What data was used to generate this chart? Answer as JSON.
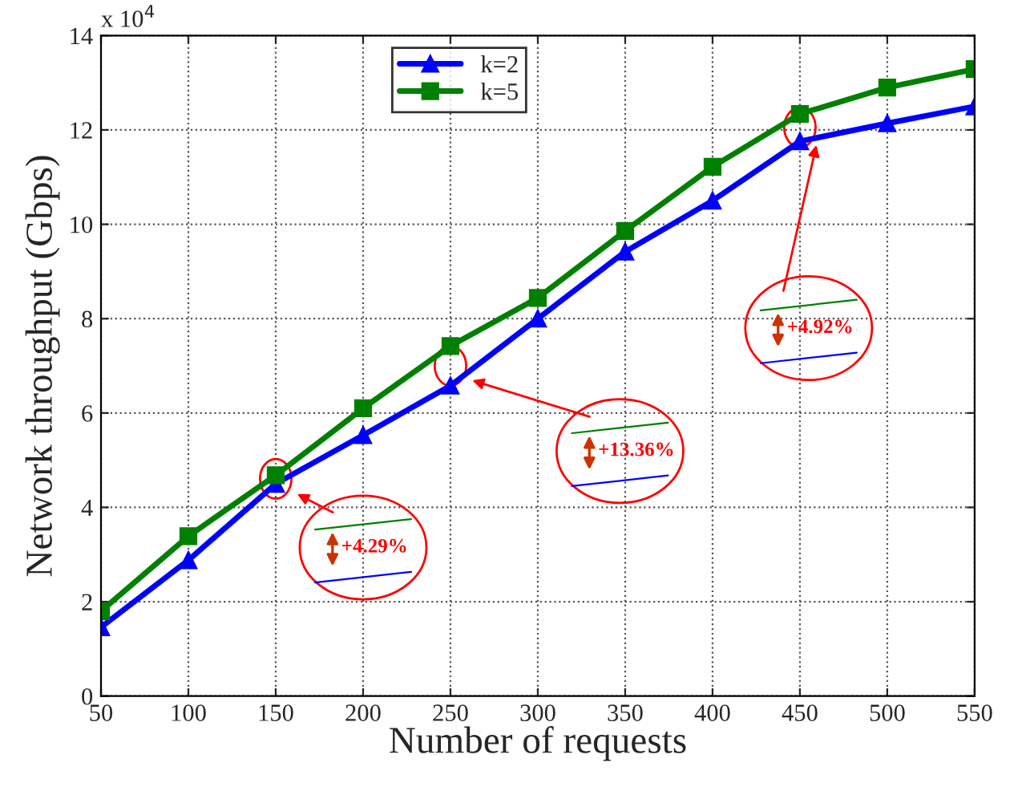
{
  "chart_data": {
    "type": "line",
    "xlabel": "Number of requests",
    "ylabel": "Network throughput (Gbps)",
    "x": [
      50,
      100,
      150,
      200,
      250,
      300,
      350,
      400,
      450,
      500,
      550
    ],
    "series": [
      {
        "name": "k=2",
        "color": "#0000ff",
        "marker": "triangle",
        "values": [
          1.46,
          2.88,
          4.5,
          5.53,
          6.58,
          8.0,
          9.42,
          10.5,
          11.76,
          12.14,
          12.5
        ]
      },
      {
        "name": "k=5",
        "color": "#008000",
        "marker": "square",
        "values": [
          1.8,
          3.39,
          4.68,
          6.1,
          7.42,
          8.44,
          9.86,
          11.22,
          12.34,
          12.9,
          13.29
        ]
      }
    ],
    "xlim": [
      50,
      550
    ],
    "xticks": [
      50,
      100,
      150,
      200,
      250,
      300,
      350,
      400,
      450,
      500,
      550
    ],
    "ylim": [
      0,
      14
    ],
    "yticks": [
      0,
      2,
      4,
      6,
      8,
      10,
      12,
      14
    ],
    "annotations": [
      "x 10$^{4}$",
      "+4.29%",
      "+13.36%",
      "+4.92%"
    ],
    "grid": true,
    "legend": "top",
    "line_style": "solid"
  }
}
